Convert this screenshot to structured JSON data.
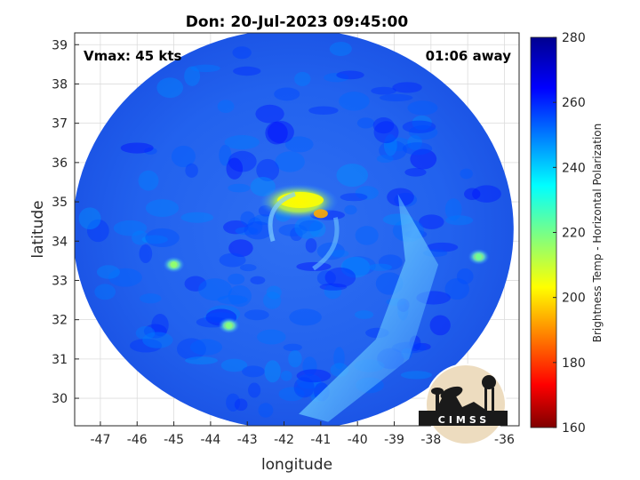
{
  "chart_data": {
    "type": "heatmap",
    "title": "Don: 20-Jul-2023 09:45:00",
    "xlabel": "longitude",
    "ylabel": "latitude",
    "xlim": [
      -47.7,
      -35.6
    ],
    "ylim": [
      29.3,
      39.3
    ],
    "xticks": [
      -47,
      -46,
      -45,
      -44,
      -43,
      -42,
      -41,
      -40,
      -39,
      -38,
      -37,
      -36
    ],
    "yticks": [
      30,
      31,
      32,
      33,
      34,
      35,
      36,
      37,
      38,
      39
    ],
    "grid": true,
    "annotations": {
      "left": "Vmax: 45 kts",
      "right": "01:06 away"
    },
    "colorbar": {
      "label": "Brightness Temp - Horizontal Polarization",
      "range": [
        160,
        280
      ],
      "ticks": [
        160,
        180,
        200,
        220,
        240,
        260,
        280
      ],
      "colormap": "jet"
    },
    "swath": {
      "center_lon": -41.75,
      "center_lat": 34.3,
      "radius_lon": 6.0,
      "radius_lat": 5.1,
      "background_value": 255
    },
    "features": [
      {
        "name": "eyewall",
        "lon": -41.6,
        "lat": 35.0,
        "value": 205
      },
      {
        "name": "eyewall-core",
        "lon": -41.0,
        "lat": 34.7,
        "value": 195
      },
      {
        "name": "rainband-spot",
        "lon": -45.0,
        "lat": 33.4,
        "value": 218
      },
      {
        "name": "rainband-spot",
        "lon": -43.5,
        "lat": 31.85,
        "value": 220
      },
      {
        "name": "rainband-spot",
        "lon": -36.7,
        "lat": 33.6,
        "value": 222
      },
      {
        "name": "light-band",
        "lon": -38.5,
        "lat": 31.2,
        "value": 240
      }
    ],
    "watermark": "CIMSS"
  }
}
